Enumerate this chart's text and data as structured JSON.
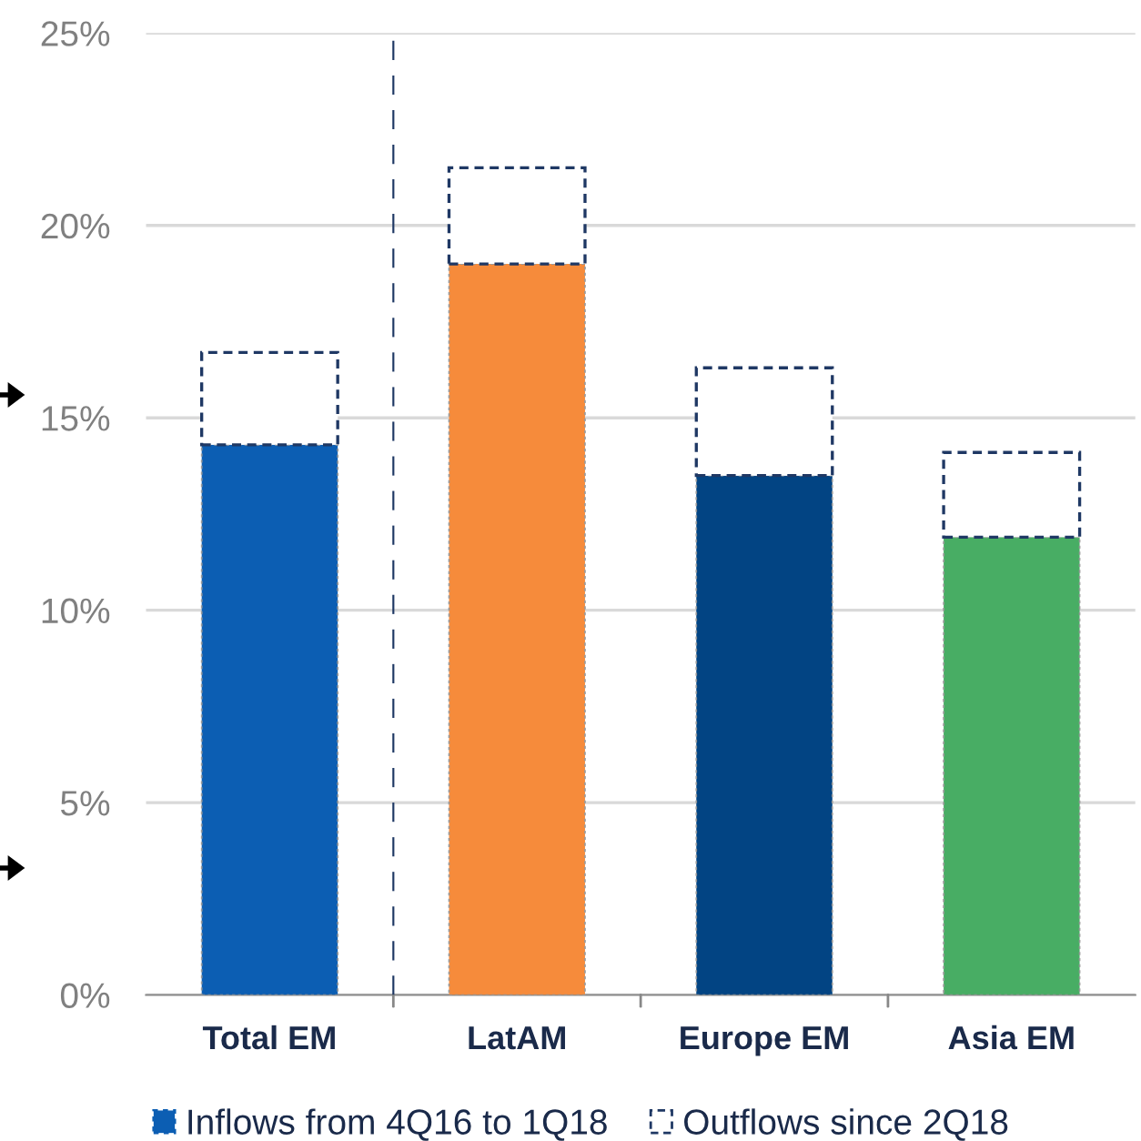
{
  "chart_data": {
    "type": "bar",
    "stacked": true,
    "categories": [
      "Total EM",
      "LatAM",
      "Europe EM",
      "Asia EM"
    ],
    "series": [
      {
        "name": "Inflows from 4Q16 to 1Q18",
        "colors": [
          "#0c5eb3",
          "#f68b3b",
          "#024483",
          "#48ad64"
        ],
        "color": "#0c5eb3",
        "values": [
          14.3,
          19.0,
          13.5,
          11.9
        ]
      },
      {
        "name": "Outflows since 2Q18",
        "color": "#ffffff",
        "line_style": "dashed",
        "values": [
          2.4,
          2.5,
          2.8,
          2.2
        ]
      }
    ],
    "ylim": [
      0,
      25
    ],
    "yticks": [
      {
        "value": 0,
        "label": "0%"
      },
      {
        "value": 5,
        "label": "5%"
      },
      {
        "value": 10,
        "label": "10%"
      },
      {
        "value": 15,
        "label": "15%"
      },
      {
        "value": 20,
        "label": "20%"
      },
      {
        "value": 25,
        "label": "25%"
      }
    ],
    "grid": "y",
    "legend": "bottom"
  }
}
